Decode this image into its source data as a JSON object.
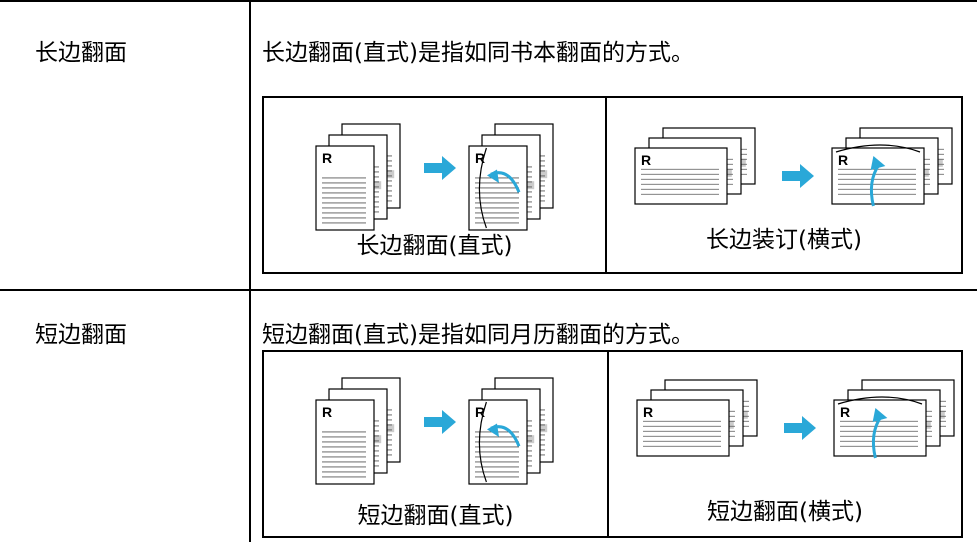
{
  "rows": [
    {
      "label": "长边翻面",
      "description": "长边翻面(直式)是指如同书本翻面的方式。",
      "figures": [
        {
          "caption": "长边翻面(直式)",
          "marks": [
            "R",
            "R"
          ]
        },
        {
          "caption": "长边装订(横式)",
          "marks": [
            "R",
            "R"
          ]
        }
      ]
    },
    {
      "label": "短边翻面",
      "description": "短边翻面(直式)是指如同月历翻面的方式。",
      "figures": [
        {
          "caption": "短边翻面(直式)",
          "marks": [
            "R",
            "R"
          ]
        },
        {
          "caption": "短边翻面(横式)",
          "marks": [
            "R",
            "R"
          ]
        }
      ]
    }
  ]
}
